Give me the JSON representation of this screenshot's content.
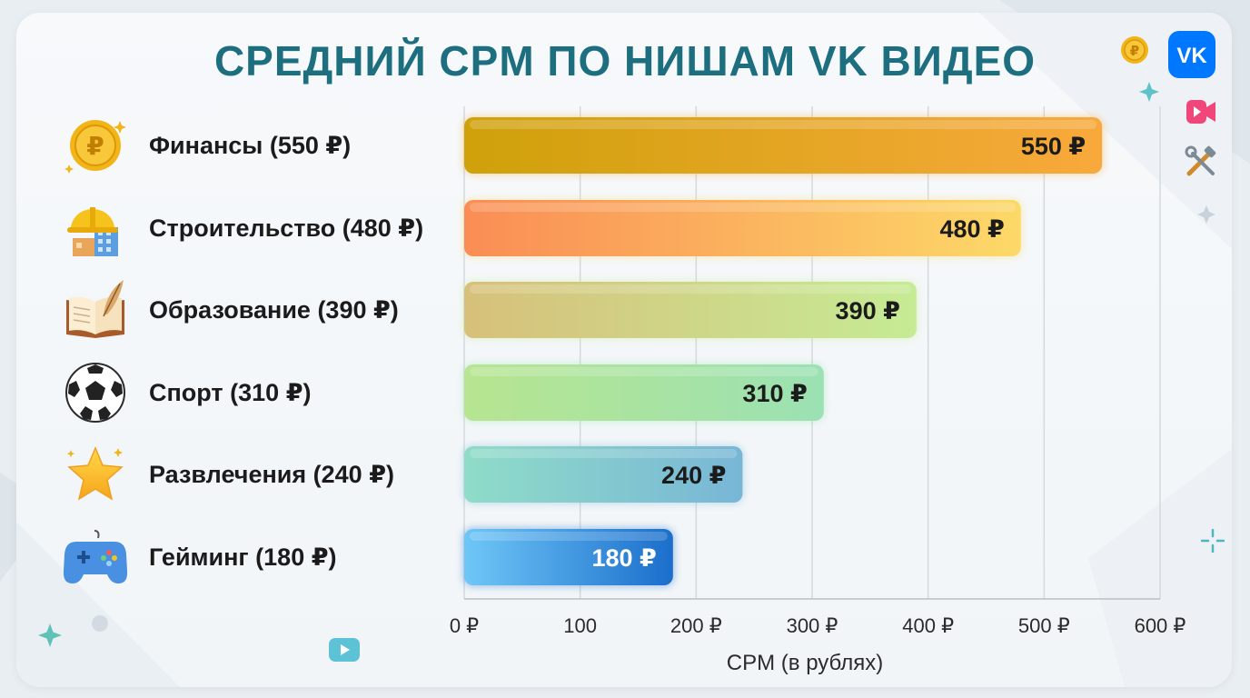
{
  "chart_data": {
    "type": "bar",
    "orientation": "horizontal",
    "title": "СРЕДНИЙ CPM ПО НИШАМ VK ВИДЕО",
    "xlabel": "CPM (в рублях)",
    "ylabel": "",
    "categories": [
      "Финансы",
      "Строительство",
      "Образование",
      "Спорт",
      "Развлечения",
      "Гейминг"
    ],
    "category_labels": [
      "Финансы (550 ₽)",
      "Строительство (480 ₽)",
      "Образование (390 ₽)",
      "Спорт (310 ₽)",
      "Развлечения (240 ₽)",
      "Гейминг (180 ₽)"
    ],
    "values": [
      550,
      480,
      390,
      310,
      240,
      180
    ],
    "value_labels": [
      "550 ₽",
      "480 ₽",
      "390 ₽",
      "310 ₽",
      "240 ₽",
      "180 ₽"
    ],
    "xlim": [
      0,
      600
    ],
    "x_ticks": [
      0,
      100,
      200,
      300,
      400,
      500,
      600
    ],
    "x_tick_labels": [
      "0 ₽",
      "100",
      "200 ₽",
      "300 ₽",
      "400 ₽",
      "500 ₽",
      "600 ₽"
    ],
    "grid": true,
    "bar_colors": [
      [
        "#cfa10a",
        "#f8a93c"
      ],
      [
        "#fa8d55",
        "#fcd968"
      ],
      [
        "#d7c07a",
        "#c6eb95"
      ],
      [
        "#b7e590",
        "#9be1b3"
      ],
      [
        "#8fdcc8",
        "#78b6d6"
      ],
      [
        "#6fc7f7",
        "#1b6ecb"
      ]
    ],
    "value_label_colors": [
      "#1b1b1b",
      "#1b1b1b",
      "#1b1b1b",
      "#1b1b1b",
      "#1b1b1b",
      "#ffffff"
    ]
  },
  "icons": {
    "categories": [
      "ruble-coin-icon",
      "construction-icon",
      "book-quill-icon",
      "soccer-ball-icon",
      "star-icon",
      "gamepad-icon"
    ],
    "side": [
      "ruble-coin-icon",
      "vk-logo-icon",
      "video-camera-icon",
      "tools-icon",
      "play-button-icon"
    ]
  },
  "brand": {
    "vk_color": "#0077ff",
    "title_color": "#1d6f80"
  }
}
